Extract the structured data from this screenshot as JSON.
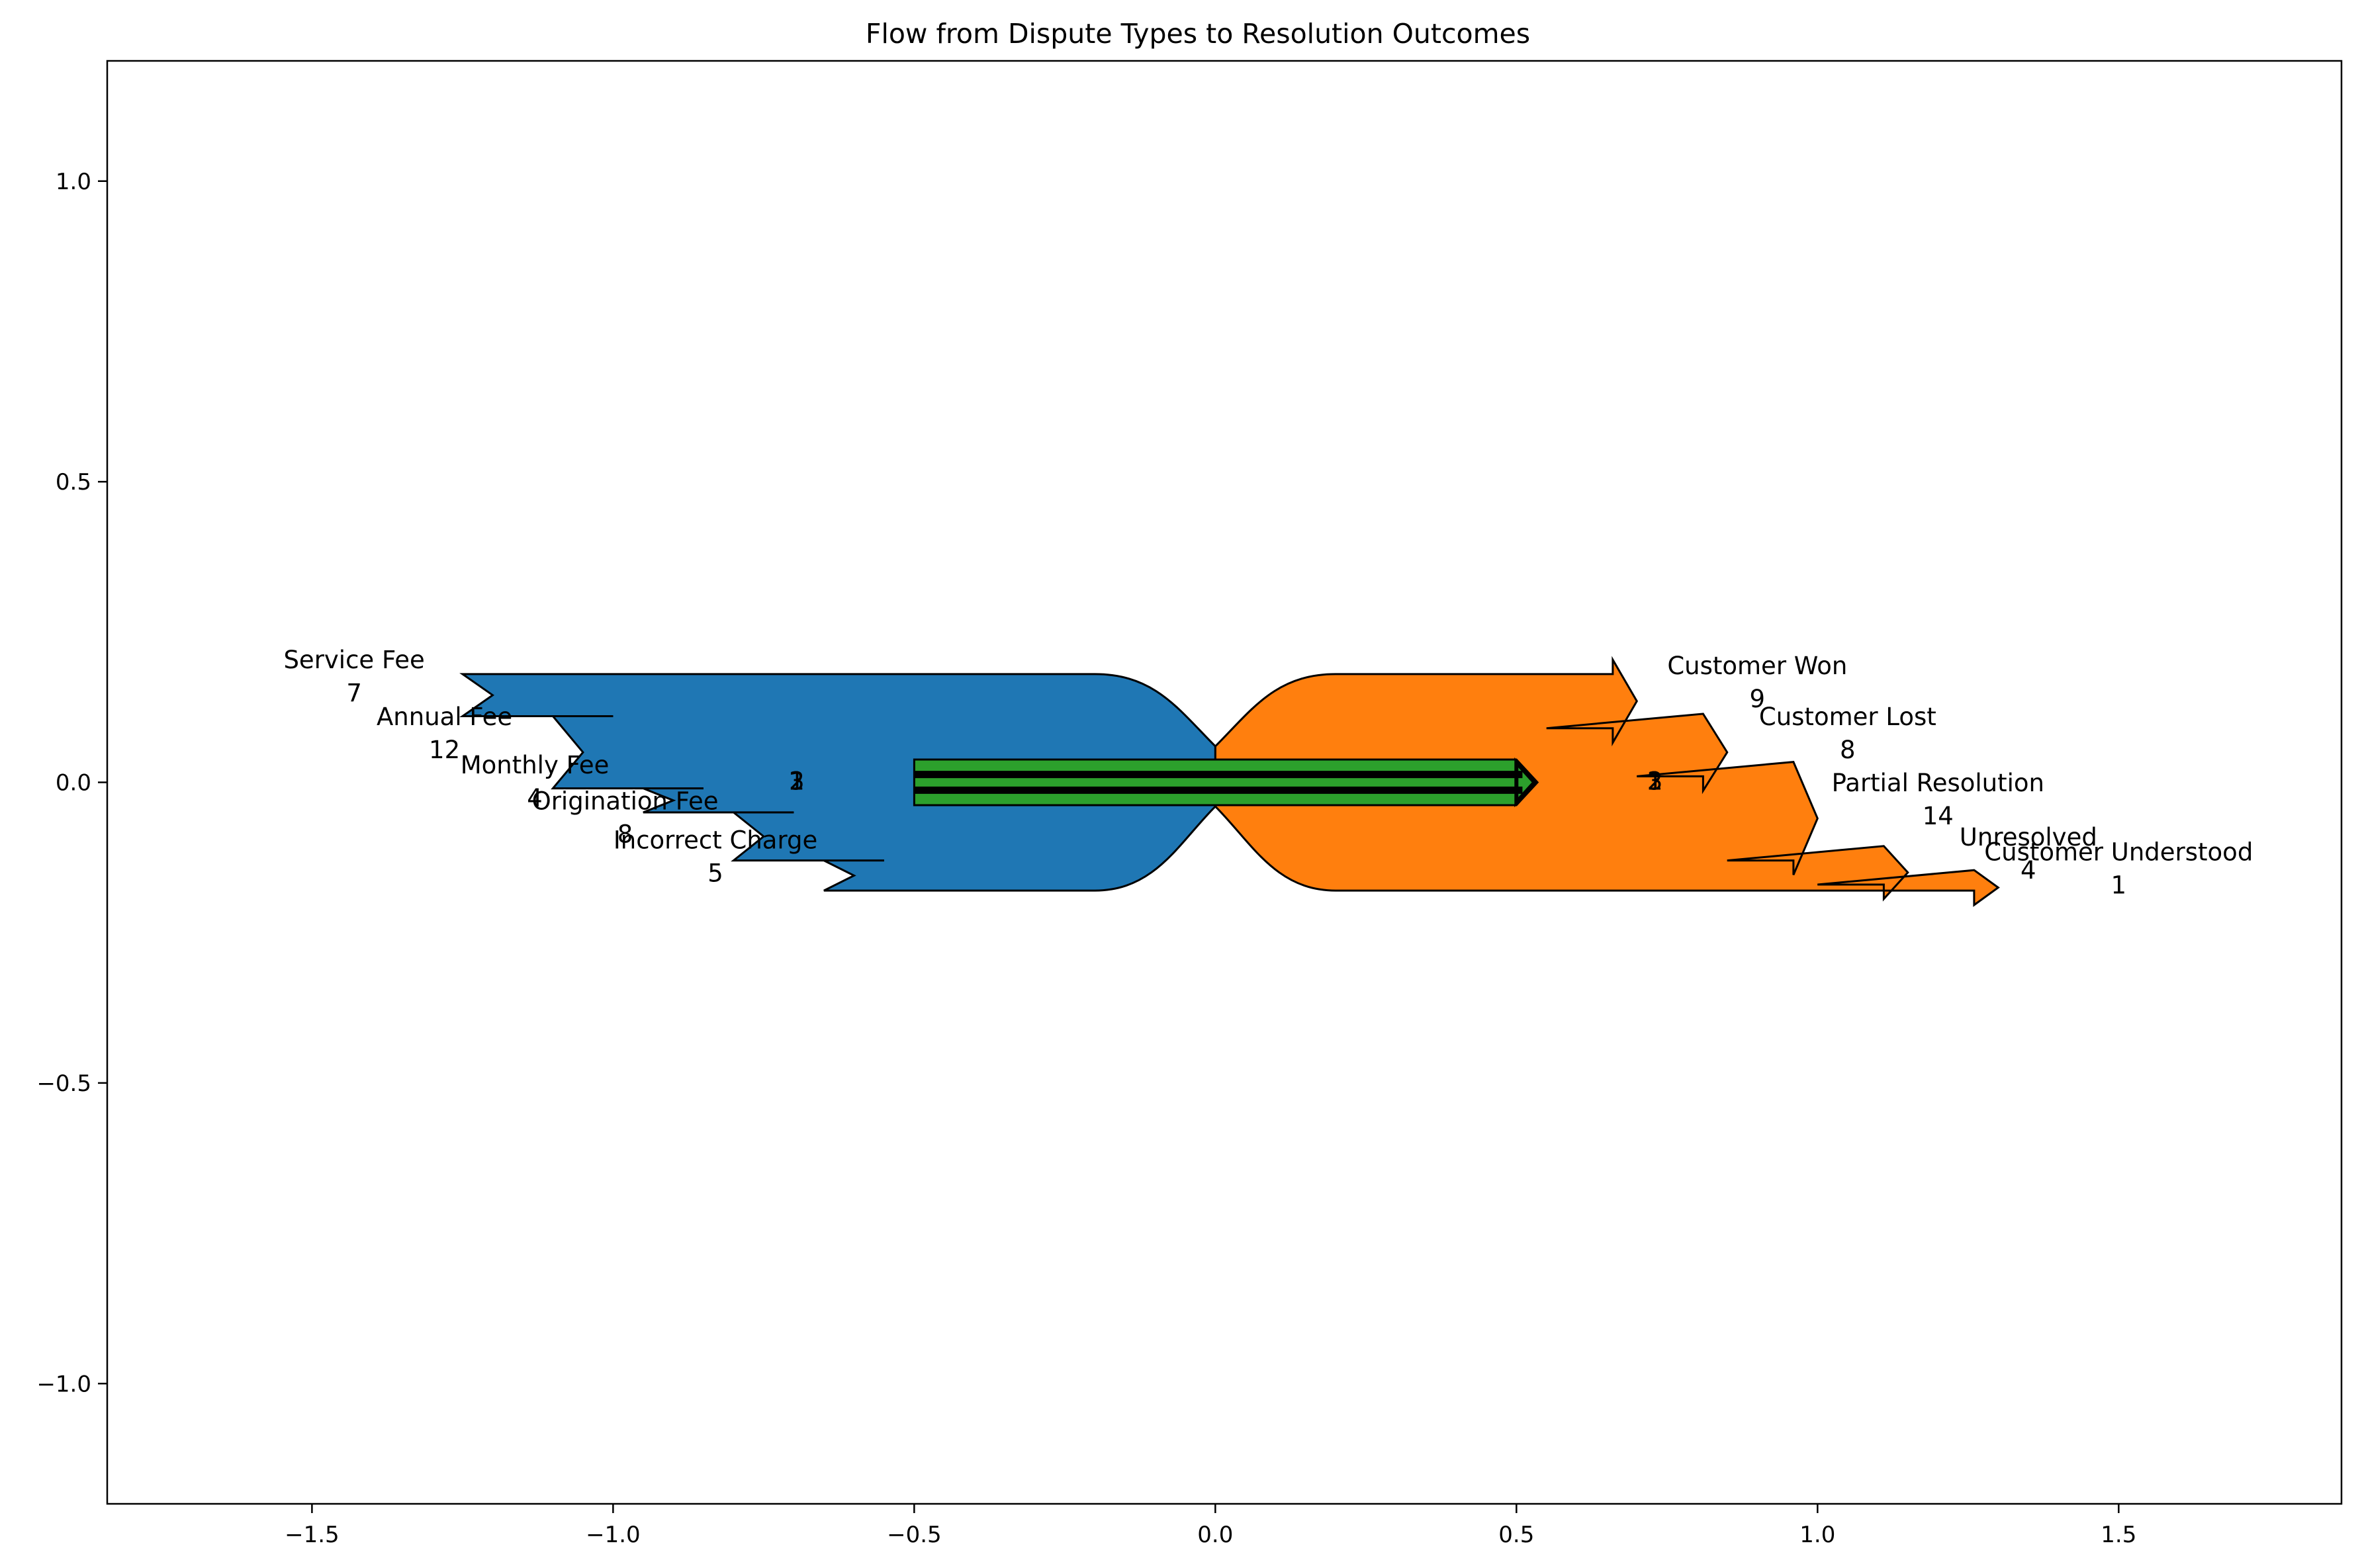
{
  "chart_data": {
    "type": "sankey",
    "title": "Flow from Dispute Types to Resolution Outcomes",
    "xlabel": "",
    "ylabel": "",
    "xlim": [
      -1.84,
      1.87
    ],
    "ylim": [
      -1.2,
      1.2
    ],
    "x_ticks": [
      -1.5,
      -1.0,
      -0.5,
      0.0,
      0.5,
      1.0,
      1.5
    ],
    "x_tick_labels": [
      "−1.5",
      "−1.0",
      "−0.5",
      "0.0",
      "0.5",
      "1.0",
      "1.5"
    ],
    "y_ticks": [
      1.0,
      0.5,
      0.0,
      -0.5,
      -1.0
    ],
    "y_tick_labels": [
      "1.0",
      "0.5",
      "0.0",
      "−0.5",
      "−1.0"
    ],
    "grid": false,
    "colors": {
      "inputs": "#1f77b4",
      "outputs": "#ff7f0e",
      "connector": "#2ca02c",
      "connector_core": "#000000"
    },
    "inputs": [
      {
        "name": "Service Fee",
        "value": 7
      },
      {
        "name": "Annual Fee",
        "value": 12
      },
      {
        "name": "Monthly Fee",
        "value": 4
      },
      {
        "name": "Origination Fee",
        "value": 8
      },
      {
        "name": "Incorrect Charge",
        "value": 5
      }
    ],
    "outputs": [
      {
        "name": "Customer Won",
        "value": 9
      },
      {
        "name": "Customer Lost",
        "value": 8
      },
      {
        "name": "Partial Resolution",
        "value": 14
      },
      {
        "name": "Unresolved",
        "value": 4
      },
      {
        "name": "Customer Understood",
        "value": 1
      }
    ],
    "connector_inputs": [
      {
        "value": 2
      },
      {
        "value": 1
      },
      {
        "value": 3
      }
    ],
    "connector_outputs": [
      {
        "value": 2
      },
      {
        "value": 1
      },
      {
        "value": 3
      }
    ]
  }
}
